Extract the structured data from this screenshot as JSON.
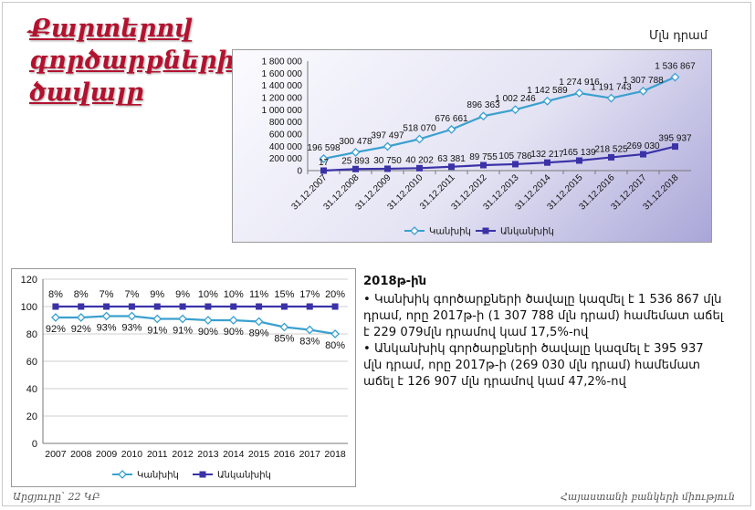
{
  "title": "Քարտերով\nգործարքների\nծավալը",
  "unit_label": "Մլն դրամ",
  "footer": {
    "left": "Արցյուրը՝ 22 ԿԲ",
    "right": "Հայաստանի բանկերի միություն"
  },
  "note": {
    "heading": "2018թ-ին",
    "items": [
      "• Կանխիկ գործարքների ծավալը կազմել է 1 536 867 մլն դրամ, որը 2017թ-ի (1 307 788 մլն դրամ) համեմատ աճել է 229 079մլն դրամով կամ 17,5%-ով",
      "• Անկանխիկ գործարքների ծավալը կազմել է 395 937 մլն դրամ, որը 2017թ-ի (269 030 մլն դրամ) համեմատ աճել է  126 907 մլն դրամով կամ 47,2%-ով"
    ]
  },
  "chart_data": [
    {
      "type": "line",
      "x": [
        "31.12.2007",
        "31.12.2008",
        "31.12.2009",
        "31.12.2010",
        "31.12.2011",
        "31.12.2012",
        "31.12.2013",
        "31.12.2014",
        "31.12.2015",
        "31.12.2016",
        "31.12.2017",
        "31.12.2018"
      ],
      "yticks": [
        "0",
        "200 000",
        "400 000",
        "600 000",
        "800 000",
        "1 000 000",
        "1 200 000",
        "1 400 000",
        "1 600 000",
        "1 800 000"
      ],
      "ylim": [
        0,
        1800000
      ],
      "legend_position": "bottom",
      "series": [
        {
          "name": "Կանխիկ",
          "color": "#3aa0cf",
          "marker": "diamond",
          "values": [
            196598,
            300478,
            397497,
            518070,
            676661,
            896363,
            1002246,
            1142589,
            1274916,
            1191743,
            1307788,
            1536867
          ],
          "labels": [
            "196 598",
            "300 478",
            "397 497",
            "518 070",
            "676 661",
            "896 363",
            "1 002 246",
            "1 142 589",
            "1 274 916",
            "1 191 743",
            "1 307 788",
            "1 536 867"
          ]
        },
        {
          "name": "Անկանխիկ",
          "color": "#3b32a8",
          "marker": "square",
          "values": [
            17,
            25893,
            30750,
            40202,
            63381,
            89755,
            105786,
            132217,
            165139,
            218525,
            269030,
            395937
          ],
          "labels": [
            "17",
            "25 893",
            "30 750",
            "40 202",
            "63 381",
            "89 755",
            "105 786",
            "132 217",
            "165 139",
            "218 525",
            "269 030",
            "395 937"
          ]
        }
      ]
    },
    {
      "type": "line",
      "x": [
        "2007",
        "2008",
        "2009",
        "2010",
        "2011",
        "2012",
        "2013",
        "2014",
        "2015",
        "2016",
        "2017",
        "2018"
      ],
      "yticks": [
        "0",
        "20",
        "40",
        "60",
        "80",
        "100",
        "120"
      ],
      "ylim": [
        0,
        120
      ],
      "grid": true,
      "legend_position": "bottom",
      "series": [
        {
          "name": "Կանխիկ",
          "color": "#3aa0cf",
          "marker": "diamond",
          "values": [
            92,
            92,
            93,
            93,
            91,
            91,
            90,
            90,
            89,
            85,
            83,
            80
          ],
          "labels": [
            "92%",
            "92%",
            "93%",
            "93%",
            "91%",
            "91%",
            "90%",
            "90%",
            "89%",
            "85%",
            "83%",
            "80%"
          ]
        },
        {
          "name": "Անկանխիկ",
          "color": "#3b32a8",
          "marker": "square",
          "values": [
            100,
            100,
            100,
            100,
            100,
            100,
            100,
            100,
            100,
            100,
            100,
            100
          ],
          "labels": [
            "8%",
            "8%",
            "7%",
            "7%",
            "9%",
            "9%",
            "10%",
            "10%",
            "11%",
            "15%",
            "17%",
            "20%"
          ]
        }
      ]
    }
  ]
}
